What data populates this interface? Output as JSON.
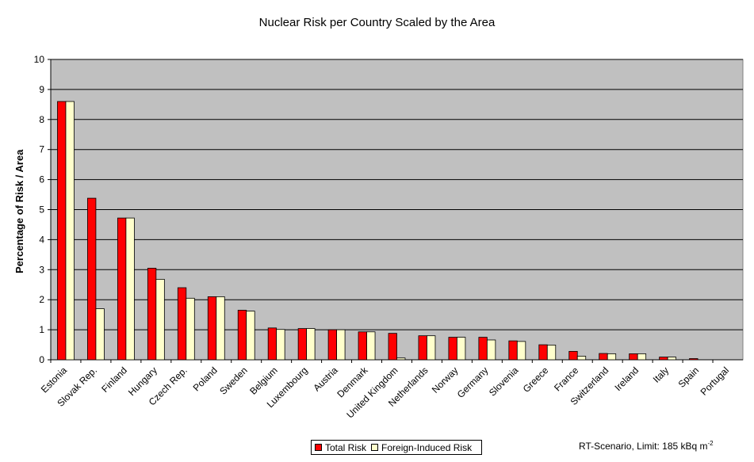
{
  "chart_data": {
    "type": "bar",
    "title": "Nuclear Risk per Country Scaled by the Area",
    "ylabel": "Percentage of Risk / Area",
    "xlabel": "",
    "ylim": [
      0,
      10
    ],
    "yticks": [
      0,
      1,
      2,
      3,
      4,
      5,
      6,
      7,
      8,
      9,
      10
    ],
    "grid": true,
    "legend_position": "bottom",
    "categories": [
      "Estonia",
      "Slovak Rep.",
      "Finland",
      "Hungary",
      "Czech Rep.",
      "Poland",
      "Sweden",
      "Belgium",
      "Luxembourg",
      "Austria",
      "Denmark",
      "United Kingdom",
      "Netherlands",
      "Norway",
      "Germany",
      "Slovenia",
      "Greece",
      "France",
      "Switzerland",
      "Ireland",
      "Italy",
      "Spain",
      "Portugal"
    ],
    "series": [
      {
        "name": "Total Risk",
        "color": "#ff0000",
        "values": [
          8.6,
          5.38,
          4.72,
          3.05,
          2.4,
          2.1,
          1.65,
          1.06,
          1.04,
          1.0,
          0.93,
          0.88,
          0.8,
          0.75,
          0.75,
          0.63,
          0.5,
          0.28,
          0.21,
          0.2,
          0.09,
          0.04,
          0.0
        ]
      },
      {
        "name": "Foreign-Induced Risk",
        "color": "#ffffcc",
        "values": [
          8.6,
          1.7,
          4.72,
          2.68,
          2.05,
          2.1,
          1.62,
          1.01,
          1.04,
          1.0,
          0.93,
          0.06,
          0.8,
          0.75,
          0.66,
          0.61,
          0.49,
          0.12,
          0.2,
          0.2,
          0.09,
          0.0,
          0.0
        ]
      }
    ],
    "plot_background": "#c0c0c0"
  },
  "note": {
    "text": "RT-Scenario, Limit: 185 kBq m",
    "superscript": "-2"
  }
}
